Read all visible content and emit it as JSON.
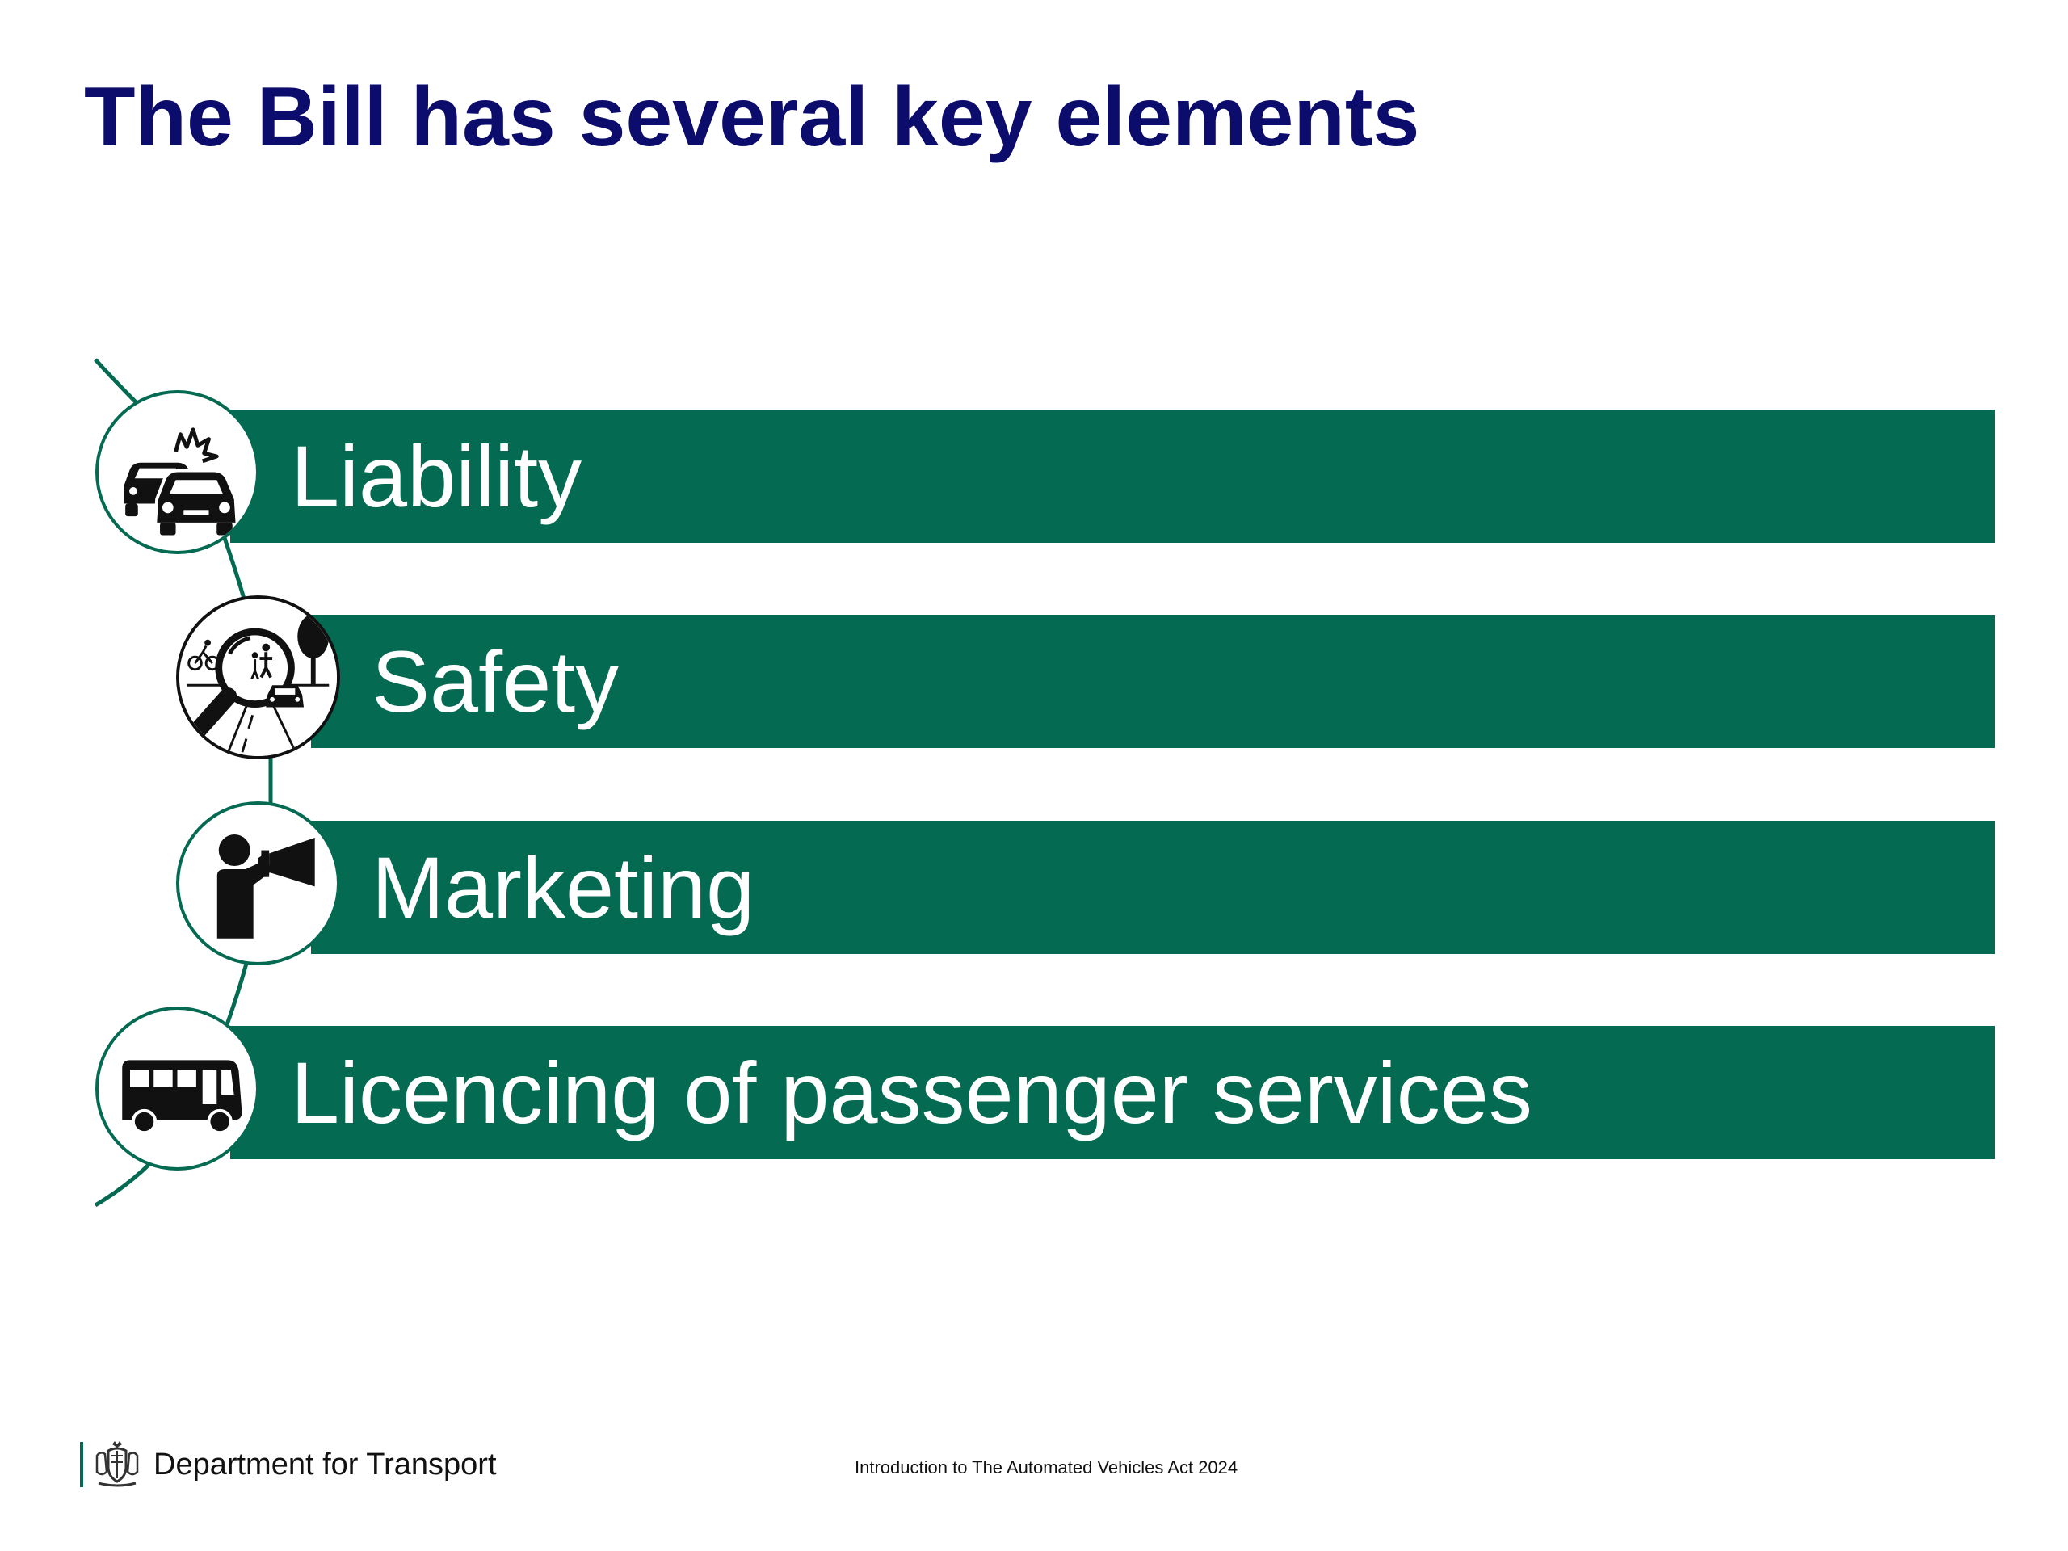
{
  "slide": {
    "title": "The Bill has several key elements",
    "accent_color": "#046a52",
    "title_color": "#0b0c6b",
    "elements": [
      {
        "label": "Liability",
        "icon": "car-collision-icon"
      },
      {
        "label": "Safety",
        "icon": "road-inspection-magnifier-icon"
      },
      {
        "label": "Marketing",
        "icon": "megaphone-person-icon"
      },
      {
        "label": "Licencing of passenger services",
        "icon": "bus-icon"
      }
    ]
  },
  "footer": {
    "organisation": "Department for Transport",
    "logo_icon": "royal-crest-icon",
    "caption": "Introduction to The Automated Vehicles Act 2024"
  }
}
